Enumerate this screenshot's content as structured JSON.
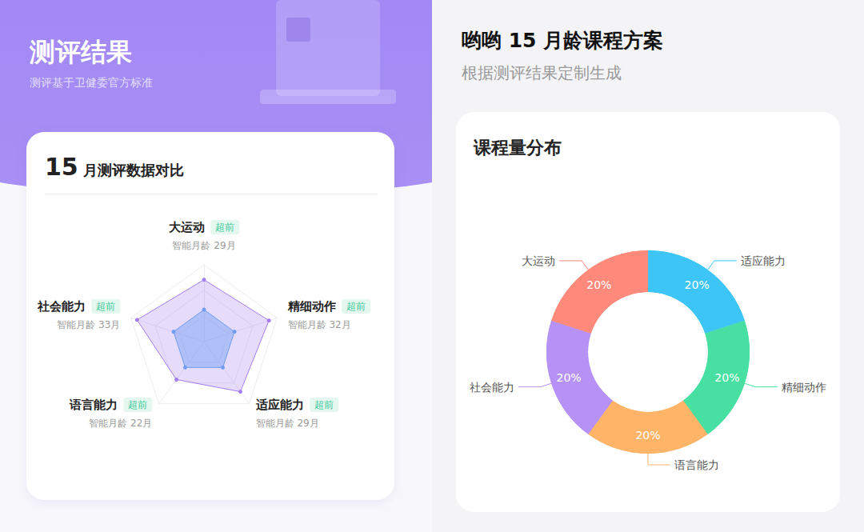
{
  "panels": [
    {
      "title": "测评结果",
      "subtitle": "测评基于卫健委官方标准"
    },
    {
      "title": "哟哟 15 月龄课程方案",
      "subtitle": "根据测评结果定制生成"
    }
  ],
  "chart_data": [
    {
      "type": "radar",
      "title": "15 月测评数据对比",
      "categories": [
        "大运动",
        "社会能力",
        "语言能力",
        "适应能力",
        "精细动作"
      ],
      "annotations": [
        "超前",
        "超前",
        "超前",
        "超前",
        "超前"
      ],
      "ylim": [
        0,
        36
      ],
      "yticks": [
        0,
        12,
        24,
        36
      ],
      "tick_labels": false,
      "series": [
        {
          "color": "#a47ef0",
          "values": [
            29,
            33,
            22,
            29,
            32
          ],
          "value_labels": [
            "智能月龄 29月",
            "智能月龄 33月",
            "智能月龄 22月",
            "智能月龄 29月",
            "智能月龄 32月"
          ]
        },
        {
          "color": "#6f9df2",
          "values": [
            15,
            15,
            15,
            15,
            15
          ]
        }
      ]
    },
    {
      "type": "donut",
      "title": "课程量分布",
      "categories": [
        "适应能力",
        "精细动作",
        "语言能力",
        "社会能力",
        "大运动"
      ],
      "values": [
        20,
        20,
        20,
        20,
        20
      ],
      "value_labels": [
        "20%",
        "20%",
        "20%",
        "20%",
        "20%"
      ],
      "data_labels": true,
      "colors": [
        "#3ec5f7",
        "#48e0a2",
        "#ffb468",
        "#b792f6",
        "#ff8a7b"
      ]
    }
  ]
}
